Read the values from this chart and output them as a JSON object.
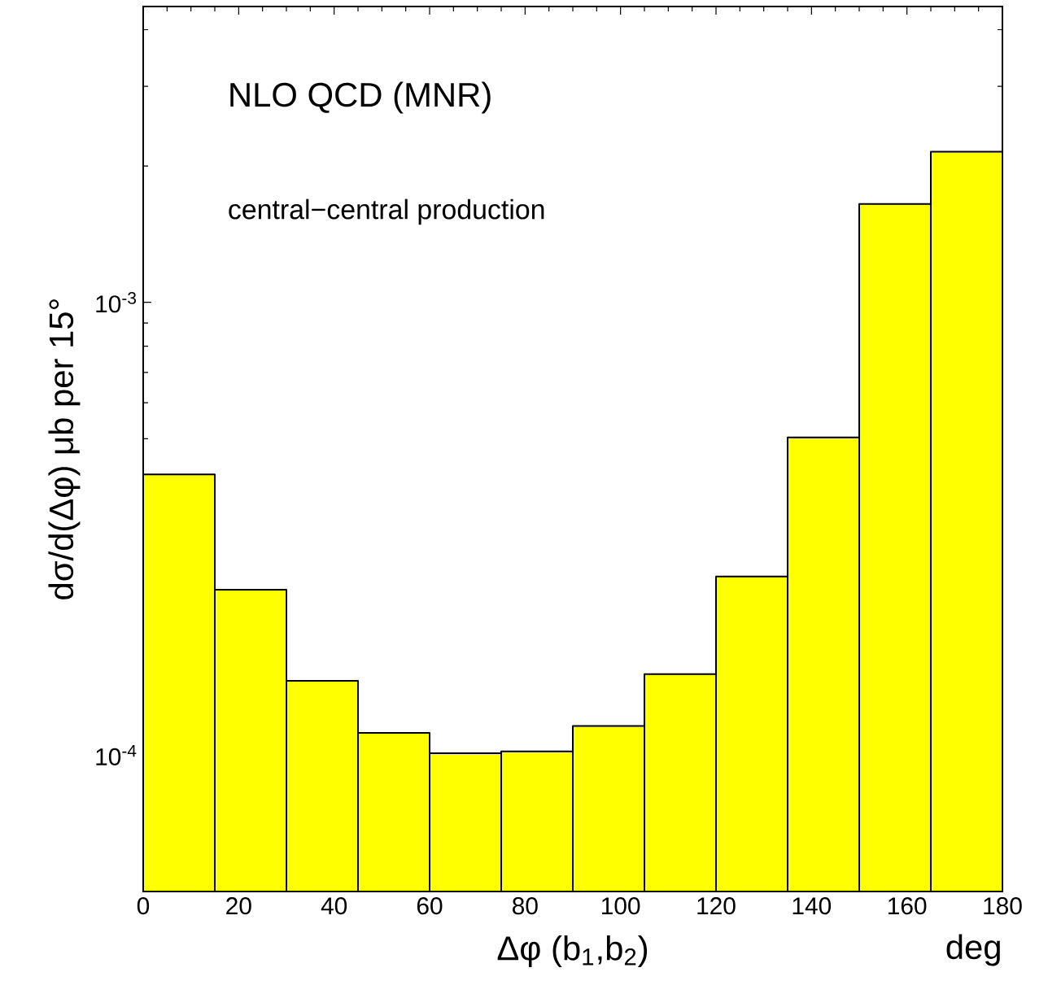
{
  "chart_data": {
    "type": "histogram",
    "xlabel": "Δφ (b$_{1}$,b$_{2}$)",
    "ylabel": "dσ/d(Δφ) μb per 15°",
    "annotations": [
      "NLO QCD (MNR)",
      "central−central production",
      "deg"
    ],
    "bins": [
      0,
      15,
      30,
      45,
      60,
      75,
      90,
      105,
      120,
      135,
      150,
      165,
      180
    ],
    "values": [
      0.000417,
      0.000232,
      0.000146,
      0.000112,
      0.000101,
      0.000102,
      0.000116,
      0.000151,
      0.000248,
      0.000503,
      0.00165,
      0.00215
    ],
    "color": "#ffff00",
    "log": "y",
    "xlim": [
      0,
      180
    ],
    "xticks": [
      0,
      20,
      40,
      60,
      80,
      100,
      120,
      140,
      160,
      180
    ],
    "ylim": [
      5e-05,
      0.0045
    ],
    "yticks": [
      {
        "value": 0.0001,
        "label": "10$^{-4}$"
      },
      {
        "value": 0.001,
        "label": "10$^{-3}$"
      }
    ]
  }
}
